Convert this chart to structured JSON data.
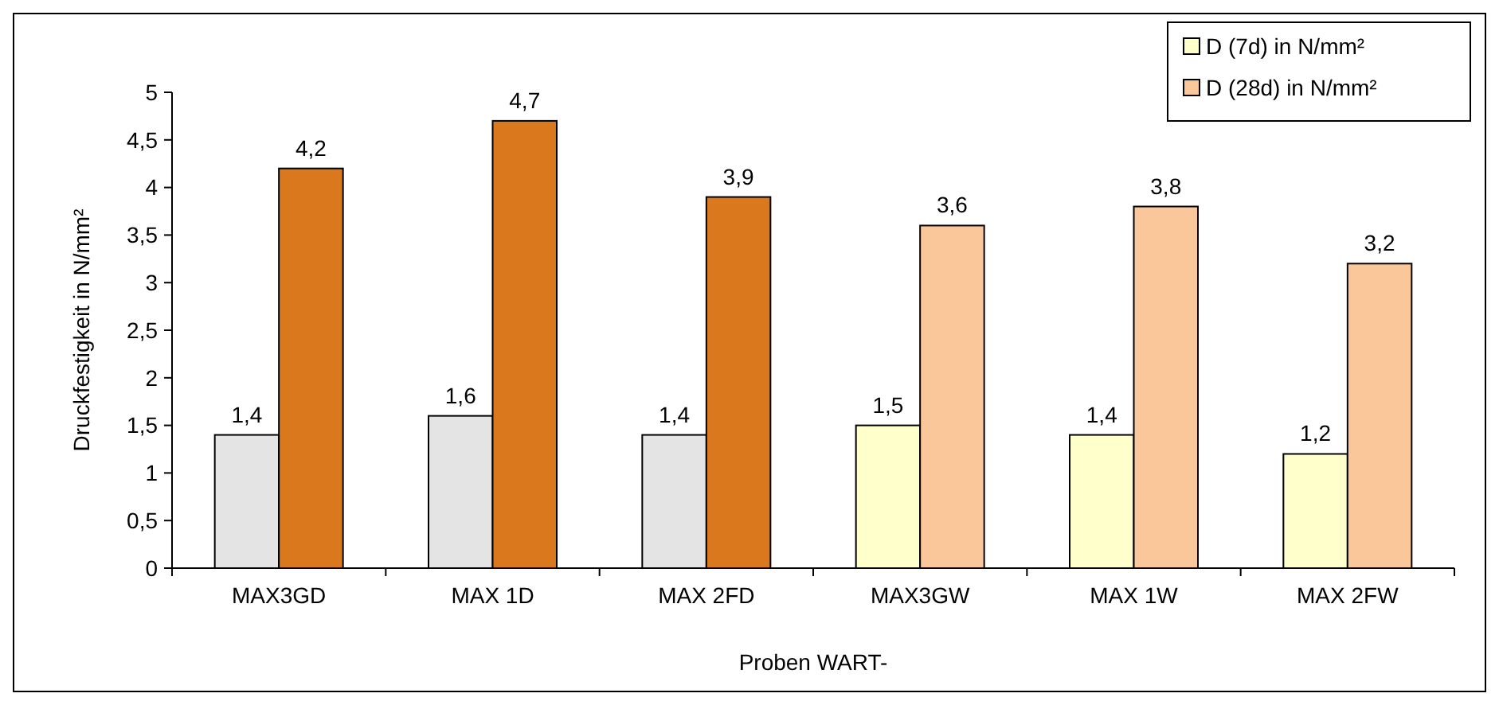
{
  "chart_data": {
    "type": "bar",
    "xlabel": "Proben WART-",
    "ylabel": "Druckfestigkeit in N/mm²",
    "categories": [
      "MAX3GD",
      "MAX 1D",
      "MAX 2FD",
      "MAX3GW",
      "MAX 1W",
      "MAX 2FW"
    ],
    "series": [
      {
        "name": "D (7d) in  N/mm²",
        "color": "#ffffcc",
        "colors": [
          "#e4e4e4",
          "#e4e4e4",
          "#e4e4e4",
          "#ffffcc",
          "#ffffcc",
          "#ffffcc"
        ],
        "values": [
          1.4,
          1.6,
          1.4,
          1.5,
          1.4,
          1.2
        ],
        "value_labels": [
          "1,4",
          "1,6",
          "1,4",
          "1,5",
          "1,4",
          "1,2"
        ]
      },
      {
        "name": "D (28d) in  N/mm²",
        "color": "#f9c79a",
        "colors": [
          "#d9781c",
          "#d9781c",
          "#d9781c",
          "#f9c79a",
          "#f9c79a",
          "#f9c79a"
        ],
        "values": [
          4.2,
          4.7,
          3.9,
          3.6,
          3.8,
          3.2
        ],
        "value_labels": [
          "4,2",
          "4,7",
          "3,9",
          "3,6",
          "3,8",
          "3,2"
        ]
      }
    ],
    "ylim": [
      0,
      5
    ],
    "yticks": [
      0,
      {
        "value": 0.5,
        "label": "0,5"
      },
      1,
      {
        "value": 1.5,
        "label": "1,5"
      },
      2,
      {
        "value": 2.5,
        "label": "2,5"
      },
      3,
      {
        "value": 3.5,
        "label": "3,5"
      },
      4,
      {
        "value": 4.5,
        "label": "4,5"
      },
      5
    ],
    "grid": false,
    "legend": "top right"
  }
}
